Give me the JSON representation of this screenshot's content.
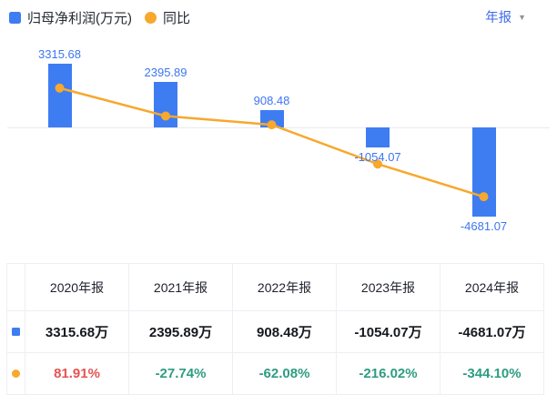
{
  "legend": {
    "series1_label": "归母净利润(万元)",
    "series2_label": "同比"
  },
  "period_selector": {
    "label": "年报",
    "caret_icon": "▼"
  },
  "colors": {
    "bar_blue": "#3E7CF2",
    "line_orange": "#F7A82D",
    "label_blue": "#3D76F0",
    "selector_blue": "#3F6BEA",
    "caret_gray": "#8E939E",
    "legend_text": "#262B33",
    "positive_red": "#E45454",
    "negative_green": "#2E9C82",
    "header_text": "#1E222B",
    "value_text": "#15181E",
    "table_border": "#EDEFF3",
    "axis_line": "#E9EAEE"
  },
  "chart_data": {
    "type": "bar",
    "categories": [
      "2020年报",
      "2021年报",
      "2022年报",
      "2023年报",
      "2024年报"
    ],
    "series": [
      {
        "name": "归母净利润(万元)",
        "type": "bar",
        "unit": "万元",
        "values": [
          3315.68,
          2395.89,
          908.48,
          -1054.07,
          -4681.07
        ],
        "labels": [
          "3315.68",
          "2395.89",
          "908.48",
          "-1054.07",
          "-4681.07"
        ]
      },
      {
        "name": "同比",
        "type": "line",
        "unit": "%",
        "values": [
          81.91,
          -27.74,
          -62.08,
          -216.02,
          -344.1
        ]
      }
    ],
    "legend_position": "top-left",
    "grid": false,
    "zero_baseline": true,
    "x_axis_labels_shown": false
  },
  "table": {
    "headers": [
      "2020年报",
      "2021年报",
      "2022年报",
      "2023年报",
      "2024年报"
    ],
    "rows": [
      {
        "icon": "blue-square",
        "cells": [
          "3315.68万",
          "2395.89万",
          "908.48万",
          "-1054.07万",
          "-4681.07万"
        ],
        "colors": [
          "dark",
          "dark",
          "dark",
          "dark",
          "dark"
        ]
      },
      {
        "icon": "orange-circle",
        "cells": [
          "81.91%",
          "-27.74%",
          "-62.08%",
          "-216.02%",
          "-344.10%"
        ],
        "colors": [
          "red",
          "green",
          "green",
          "green",
          "green"
        ]
      }
    ]
  }
}
